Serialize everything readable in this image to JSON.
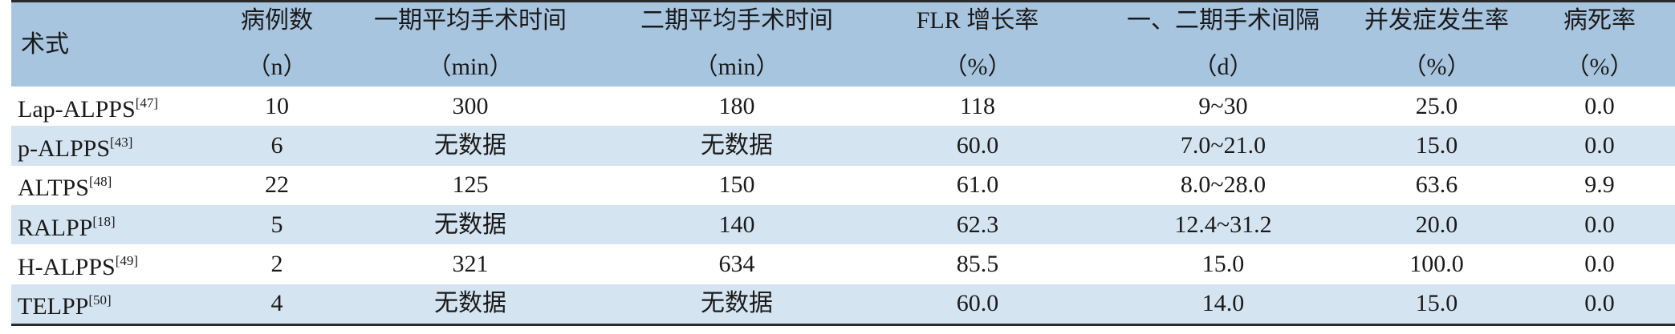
{
  "table": {
    "columns": [
      {
        "title": "术式"
      },
      {
        "title": "病例数",
        "unit": "（n）"
      },
      {
        "title": "一期平均手术时间",
        "unit": "（min）"
      },
      {
        "title": "二期平均手术时间",
        "unit": "（min）"
      },
      {
        "title": "FLR 增长率",
        "unit": "（%）"
      },
      {
        "title": "一、二期手术间隔",
        "unit": "（d）"
      },
      {
        "title": "并发症发生率",
        "unit": "（%）"
      },
      {
        "title": "病死率",
        "unit": "（%）"
      }
    ],
    "rows": [
      {
        "name": "Lap-ALPPS",
        "ref": "[47]",
        "cells": [
          "10",
          "300",
          "180",
          "118",
          "9~30",
          "25.0",
          "0.0"
        ]
      },
      {
        "name": "p-ALPPS",
        "ref": "[43]",
        "cells": [
          "6",
          "无数据",
          "无数据",
          "60.0",
          "7.0~21.0",
          "15.0",
          "0.0"
        ]
      },
      {
        "name": "ALTPS",
        "ref": "[48]",
        "cells": [
          "22",
          "125",
          "150",
          "61.0",
          "8.0~28.0",
          "63.6",
          "9.9"
        ]
      },
      {
        "name": "RALPP",
        "ref": "[18]",
        "cells": [
          "5",
          "无数据",
          "140",
          "62.3",
          "12.4~31.2",
          "20.0",
          "0.0"
        ]
      },
      {
        "name": "H-ALPPS",
        "ref": "[49]",
        "cells": [
          "2",
          "321",
          "634",
          "85.5",
          "15.0",
          "100.0",
          "0.0"
        ]
      },
      {
        "name": "TELPP",
        "ref": "[50]",
        "cells": [
          "4",
          "无数据",
          "无数据",
          "60.0",
          "14.0",
          "15.0",
          "0.0"
        ]
      }
    ]
  }
}
